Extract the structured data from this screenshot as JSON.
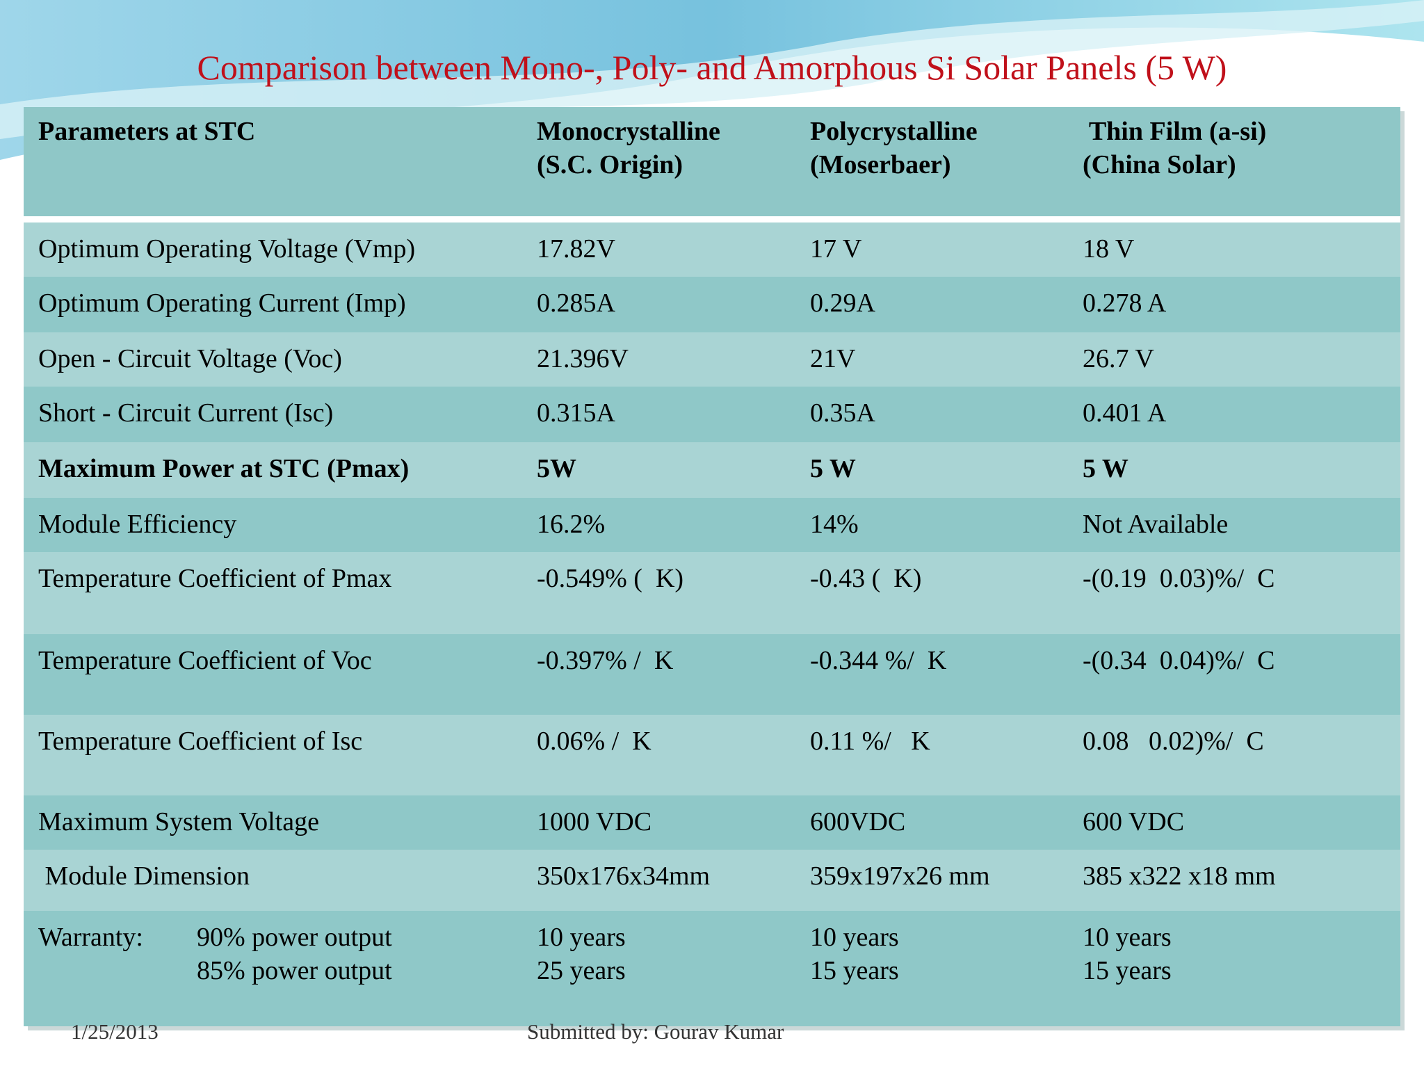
{
  "title": "Comparison between Mono-, Poly- and Amorphous Si Solar Panels (5 W)",
  "table": {
    "header": [
      [
        "Parameters at STC"
      ],
      [
        "Monocrystalline",
        "(S.C. Origin)"
      ],
      [
        "Polycrystalline",
        "(Moserbaer)"
      ],
      [
        " Thin Film (a-si)",
        "(China Solar)"
      ]
    ],
    "rows": [
      {
        "cells": [
          "Optimum Operating Voltage (Vmp)",
          "17.82V",
          "17 V",
          "18 V"
        ]
      },
      {
        "cells": [
          "Optimum Operating Current (Imp)",
          "0.285A",
          "0.29A",
          "0.278 A"
        ]
      },
      {
        "cells": [
          "Open - Circuit Voltage (Voc)",
          "21.396V",
          "21V",
          "26.7 V"
        ]
      },
      {
        "cells": [
          "Short - Circuit Current (Isc)",
          "0.315A",
          "0.35A",
          "0.401 A"
        ]
      },
      {
        "cells": [
          "Maximum Power at STC (Pmax)",
          "5W",
          "5 W",
          "5 W"
        ],
        "bold": true
      },
      {
        "cells": [
          "Module Efficiency",
          "16.2%",
          "14%",
          "Not Available"
        ]
      },
      {
        "cells": [
          "Temperature Coefficient of Pmax",
          "-0.549% (  K)",
          "-0.43 (  K)",
          "-(0.19  0.03)%/  C"
        ]
      },
      {
        "cells": [
          "Temperature Coefficient of Voc",
          "-0.397% /  K",
          "-0.344 %/  K",
          "-(0.34  0.04)%/  C"
        ]
      },
      {
        "cells": [
          "Temperature Coefficient of Isc",
          "0.06% /  K",
          "0.11 %/   K",
          "0.08   0.02)%/  C"
        ]
      },
      {
        "cells": [
          "Maximum System Voltage",
          "1000 VDC",
          "600VDC",
          "600 VDC"
        ]
      },
      {
        "cells": [
          " Module Dimension",
          "350x176x34mm",
          "359x197x26 mm",
          "385 x322 x18 mm"
        ]
      }
    ],
    "warranty": {
      "label": "Warranty:",
      "items": [
        "90% power output",
        "85% power output"
      ],
      "values": [
        [
          "10 years",
          "25 years"
        ],
        [
          "10 years",
          "15 years"
        ],
        [
          "10 years",
          "15 years"
        ]
      ]
    }
  },
  "footer": {
    "date": "1/25/2013",
    "author": "Submitted by: Gourav Kumar"
  }
}
